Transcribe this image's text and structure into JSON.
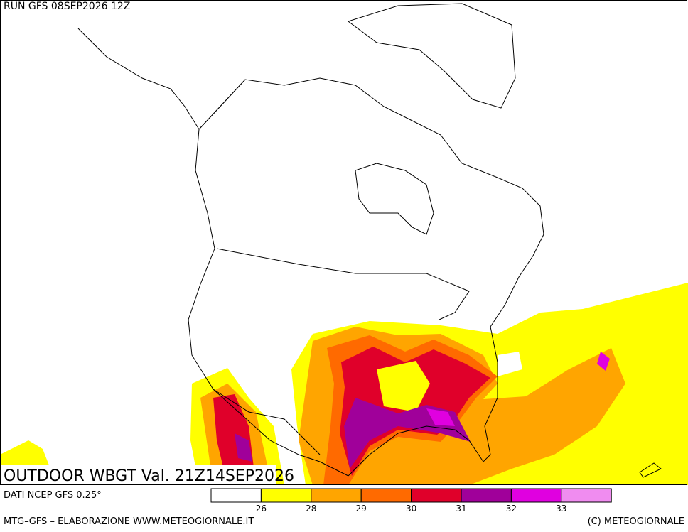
{
  "header": {
    "run": "RUN GFS 08SEP2026 12Z"
  },
  "map": {
    "title": "OUTDOOR WBGT Val. 21Z14SEP2026"
  },
  "footer": {
    "source": "DATI NCEP GFS 0.25°",
    "credit": "MTG–GFS – ELABORAZIONE WWW.METEOGIORNALE.IT",
    "copyright": "(C) METEOGIORNALE"
  },
  "legend": {
    "colors": [
      "#ffffff",
      "#ffff00",
      "#ffa500",
      "#ff6a00",
      "#e0002a",
      "#a0009a",
      "#e000e0",
      "#f08cf0"
    ],
    "bounds": [
      26,
      28,
      29,
      30,
      31,
      32,
      33
    ]
  }
}
